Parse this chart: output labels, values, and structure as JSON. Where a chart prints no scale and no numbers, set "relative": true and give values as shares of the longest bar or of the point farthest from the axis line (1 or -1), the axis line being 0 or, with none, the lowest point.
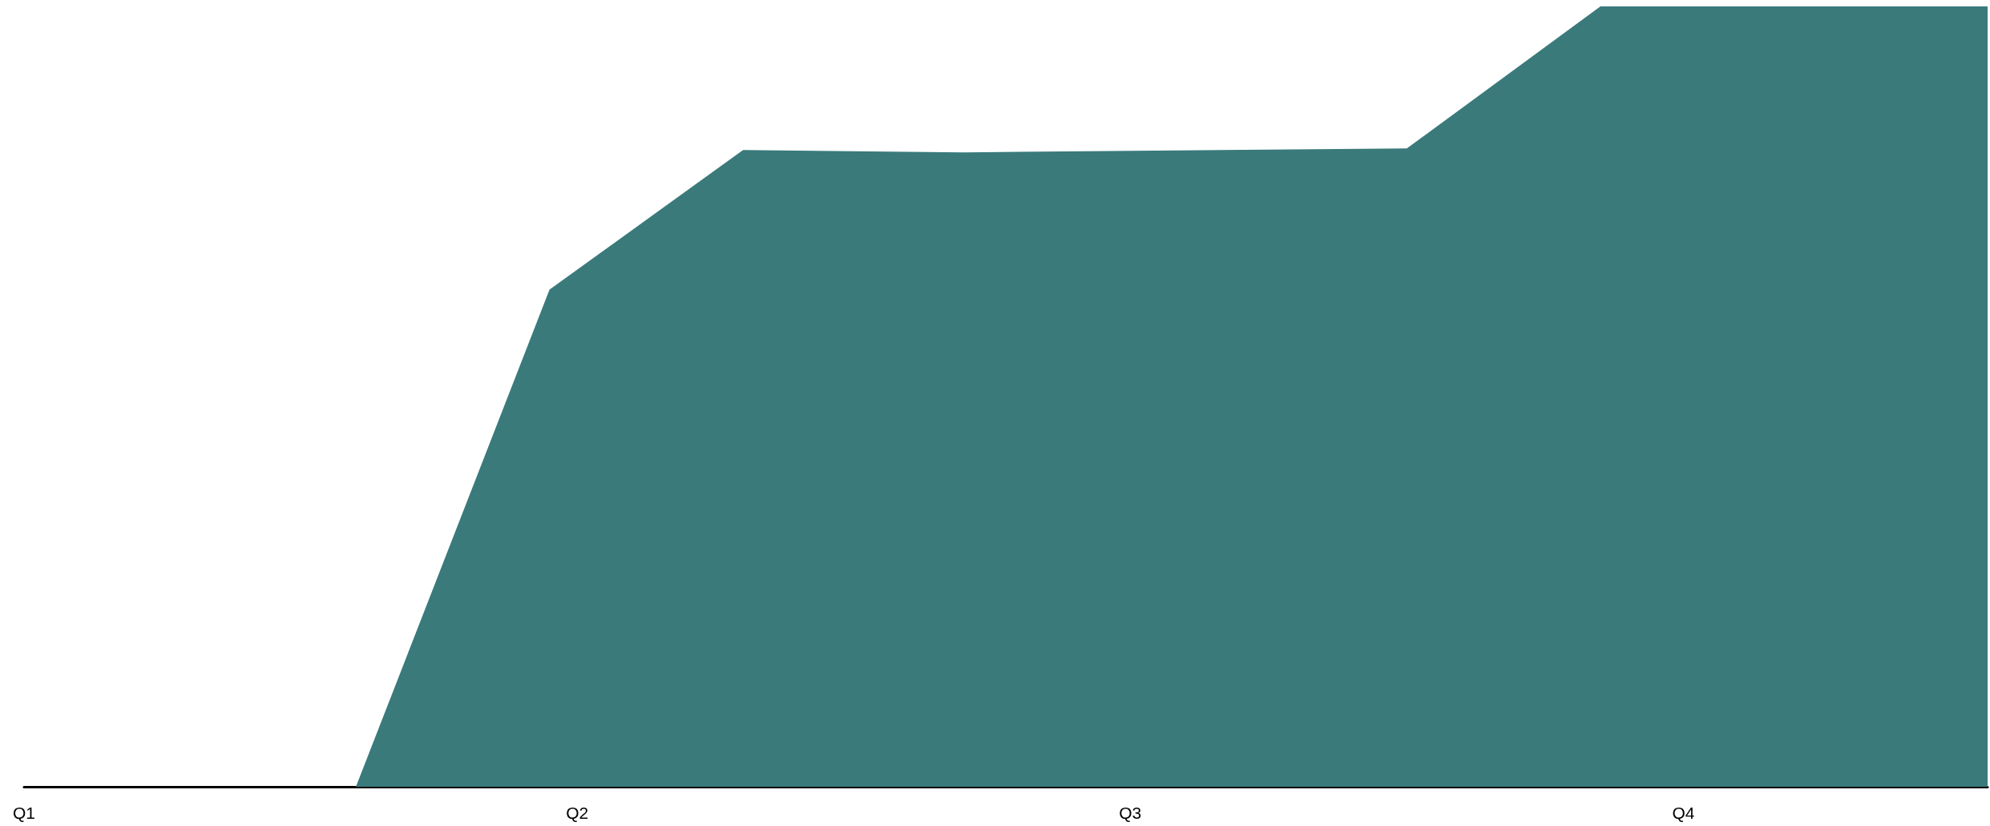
{
  "chart_data": {
    "type": "area",
    "relative": true,
    "categories": [
      "Q1",
      null,
      null,
      null,
      null,
      null,
      null,
      null,
      null,
      null,
      null,
      null,
      null,
      null,
      null,
      null,
      null,
      null,
      null,
      null,
      "Q2",
      null,
      null,
      null,
      null,
      null,
      null,
      null,
      null,
      null,
      null,
      null,
      null,
      null,
      null,
      null,
      null,
      null,
      null,
      null,
      "Q3",
      null,
      null,
      null,
      null,
      null,
      null,
      null,
      null,
      null,
      null,
      null,
      null,
      null,
      null,
      null,
      null,
      null,
      null,
      null,
      "Q4",
      null,
      null,
      null,
      null,
      null,
      null,
      null,
      null,
      null,
      null,
      null
    ],
    "values": [
      0,
      null,
      null,
      null,
      null,
      null,
      null,
      null,
      null,
      null,
      null,
      null,
      0,
      null,
      null,
      null,
      null,
      null,
      null,
      0.637,
      null,
      null,
      null,
      null,
      null,
      null,
      0.816,
      null,
      null,
      null,
      null,
      null,
      null,
      null,
      0.813,
      null,
      null,
      null,
      null,
      null,
      null,
      null,
      null,
      null,
      null,
      null,
      null,
      null,
      null,
      null,
      0.818,
      null,
      null,
      null,
      null,
      null,
      null,
      1,
      null,
      null,
      null,
      null,
      null,
      null,
      null,
      null,
      null,
      null,
      null,
      null,
      null,
      1
    ],
    "color": "#3a7a7b",
    "grid": false,
    "marker": "none"
  }
}
